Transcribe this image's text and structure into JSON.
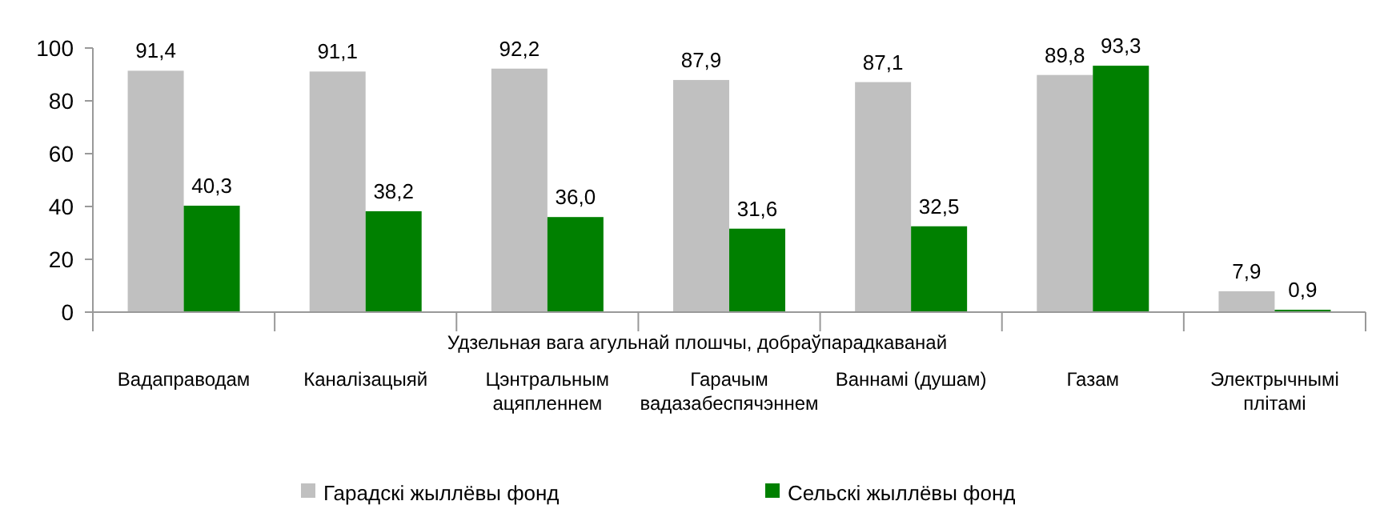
{
  "chart_data": {
    "type": "bar",
    "xlabel": "Удзельная вага агульнай плошчы, добраўпарадкаванай",
    "categories": [
      "Вадаправодам",
      "Каналізацыяй",
      "Цэнтральным\nацяпленнем",
      "Гарачым\nвадазабеспячэннем",
      "Ваннамі (душам)",
      "Газам",
      "Электрычнымі\nплітамі"
    ],
    "series": [
      {
        "name": "Гарадскі жыллёвы фонд",
        "color": "#c0c0c0",
        "values": [
          91.4,
          91.1,
          92.2,
          87.9,
          87.1,
          89.8,
          7.9
        ],
        "value_labels": [
          "91,4",
          "91,1",
          "92,2",
          "87,9",
          "87,1",
          "89,8",
          "7,9"
        ]
      },
      {
        "name": "Сельскі жыллёвы фонд",
        "color": "#008000",
        "values": [
          40.3,
          38.2,
          36.0,
          31.6,
          32.5,
          93.3,
          0.9
        ],
        "value_labels": [
          "40,3",
          "38,2",
          "36,0",
          "31,6",
          "32,5",
          "93,3",
          "0,9"
        ]
      }
    ],
    "ylim": [
      0,
      100
    ],
    "yticks": [
      0,
      20,
      40,
      60,
      80,
      100
    ],
    "grid": false,
    "legend": "bottom"
  }
}
